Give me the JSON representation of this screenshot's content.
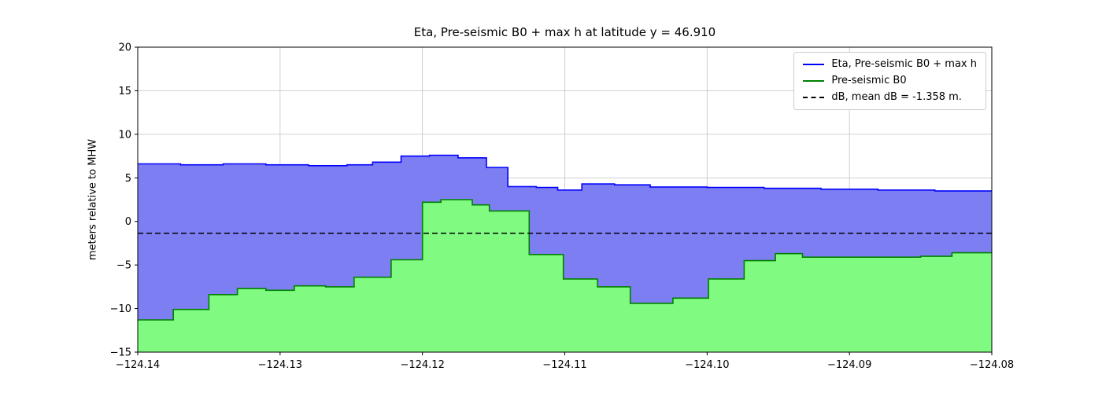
{
  "chart_data": {
    "type": "area",
    "title": "Eta, Pre-seismic B0 + max h at latitude y = 46.910",
    "xlabel": "",
    "ylabel": "meters relative to MHW",
    "xlim": [
      -124.14,
      -124.08
    ],
    "ylim": [
      -15,
      20
    ],
    "grid": true,
    "grid_color": "#c9c9c9",
    "xticks": {
      "values": [
        -124.14,
        -124.13,
        -124.12,
        -124.11,
        -124.1,
        -124.09,
        -124.08
      ],
      "labels": [
        "−124.14",
        "−124.13",
        "−124.12",
        "−124.11",
        "−124.10",
        "−124.09",
        "−124.08"
      ]
    },
    "yticks": {
      "values": [
        -15,
        -10,
        -5,
        0,
        5,
        10,
        15,
        20
      ],
      "labels": [
        "−15",
        "−10",
        "−5",
        "0",
        "5",
        "10",
        "15",
        "20"
      ]
    },
    "legend": {
      "position": "upper right"
    },
    "mean_dB": -1.358,
    "series": [
      {
        "name": "Eta, Pre-seismic B0 + max h",
        "style": "steps",
        "line_color": "#0000ff",
        "fill_color": "#7e7ef3",
        "x_edges": [
          -124.14,
          -124.137,
          -124.134,
          -124.131,
          -124.128,
          -124.1253,
          -124.1235,
          -124.1215,
          -124.1195,
          -124.1175,
          -124.1155,
          -124.114,
          -124.112,
          -124.1105,
          -124.1088,
          -124.1065,
          -124.104,
          -124.1,
          -124.096,
          -124.092,
          -124.088,
          -124.084,
          -124.08
        ],
        "values": [
          6.6,
          6.5,
          6.6,
          6.5,
          6.4,
          6.5,
          6.8,
          7.5,
          7.6,
          7.3,
          6.2,
          4.0,
          3.9,
          3.6,
          4.3,
          4.2,
          3.95,
          3.9,
          3.8,
          3.7,
          3.6,
          3.5
        ]
      },
      {
        "name": "Pre-seismic B0",
        "style": "steps",
        "line_color": "#008000",
        "fill_color": "#80fa80",
        "x_edges": [
          -124.14,
          -124.1375,
          -124.135,
          -124.133,
          -124.131,
          -124.129,
          -124.1268,
          -124.1248,
          -124.1222,
          -124.12,
          -124.1187,
          -124.1165,
          -124.1153,
          -124.1125,
          -124.1101,
          -124.1077,
          -124.1054,
          -124.1024,
          -124.0999,
          -124.0974,
          -124.0952,
          -124.0933,
          -124.085,
          -124.0828,
          -124.08
        ],
        "values": [
          -11.3,
          -10.1,
          -8.4,
          -7.7,
          -7.9,
          -7.4,
          -7.5,
          -6.4,
          -4.4,
          2.2,
          2.5,
          1.9,
          1.2,
          -3.8,
          -6.6,
          -7.5,
          -9.4,
          -8.8,
          -6.6,
          -4.5,
          -3.7,
          -4.1,
          -4.0,
          -3.6
        ]
      },
      {
        "name": "dB, mean dB = -1.358 m.",
        "style": "hline",
        "line_color": "#000000",
        "dash": true,
        "value": -1.358
      }
    ]
  }
}
